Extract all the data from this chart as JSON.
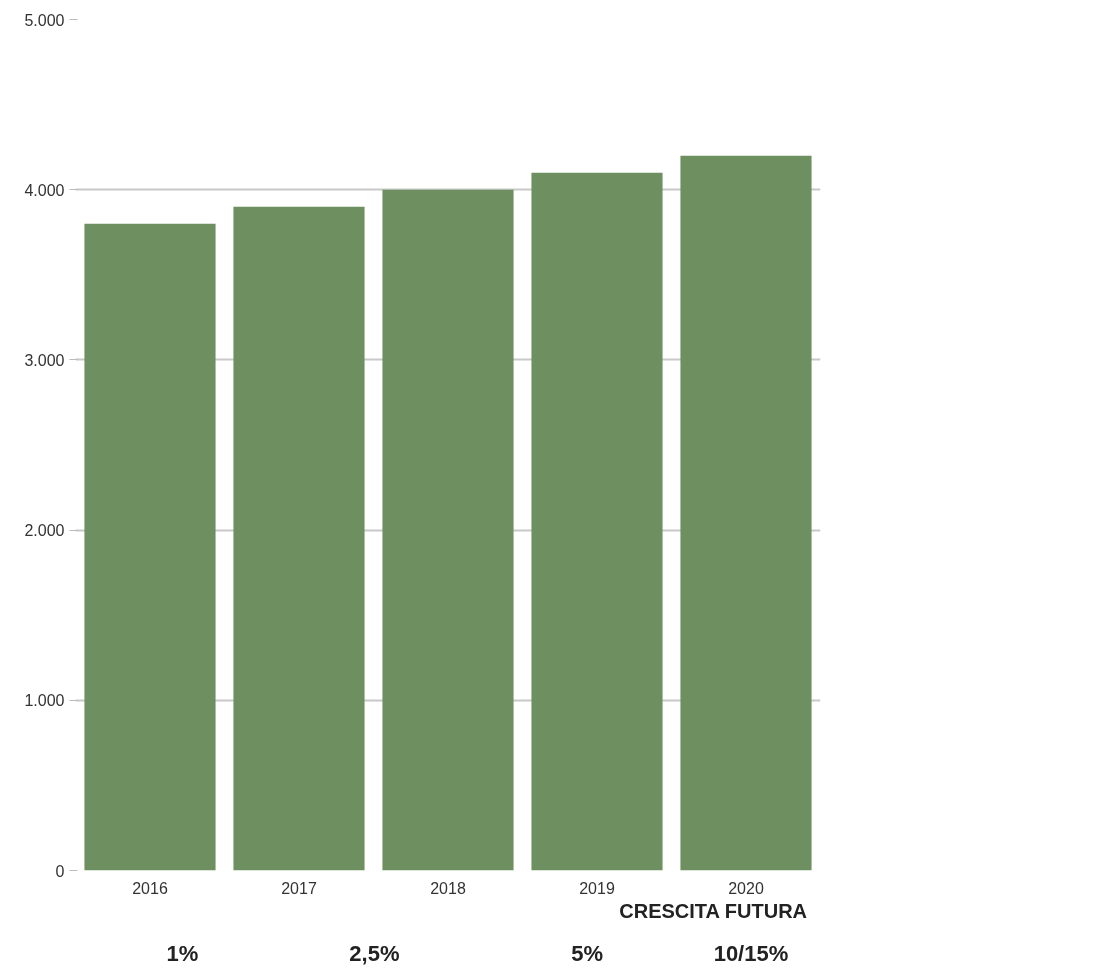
{
  "chart_data": {
    "type": "bar",
    "categories": [
      "2016",
      "2017",
      "2018",
      "2019",
      "2020"
    ],
    "values": [
      3800,
      3900,
      4000,
      4100,
      4200
    ],
    "color": "#6e8f5f",
    "ylim": [
      0,
      5000
    ],
    "yticks": [
      0,
      {
        "value": 1000,
        "label": "1.000"
      },
      {
        "value": 2000,
        "label": "2.000"
      },
      {
        "value": 3000,
        "label": "3.000"
      },
      {
        "value": 4000,
        "label": "4.000"
      },
      {
        "value": 5000,
        "label": "5.000"
      }
    ],
    "grid": "y",
    "annotations": [
      "CRESCITA FUTURA",
      "1%",
      "2,5%",
      "5%",
      "10/15%"
    ]
  }
}
